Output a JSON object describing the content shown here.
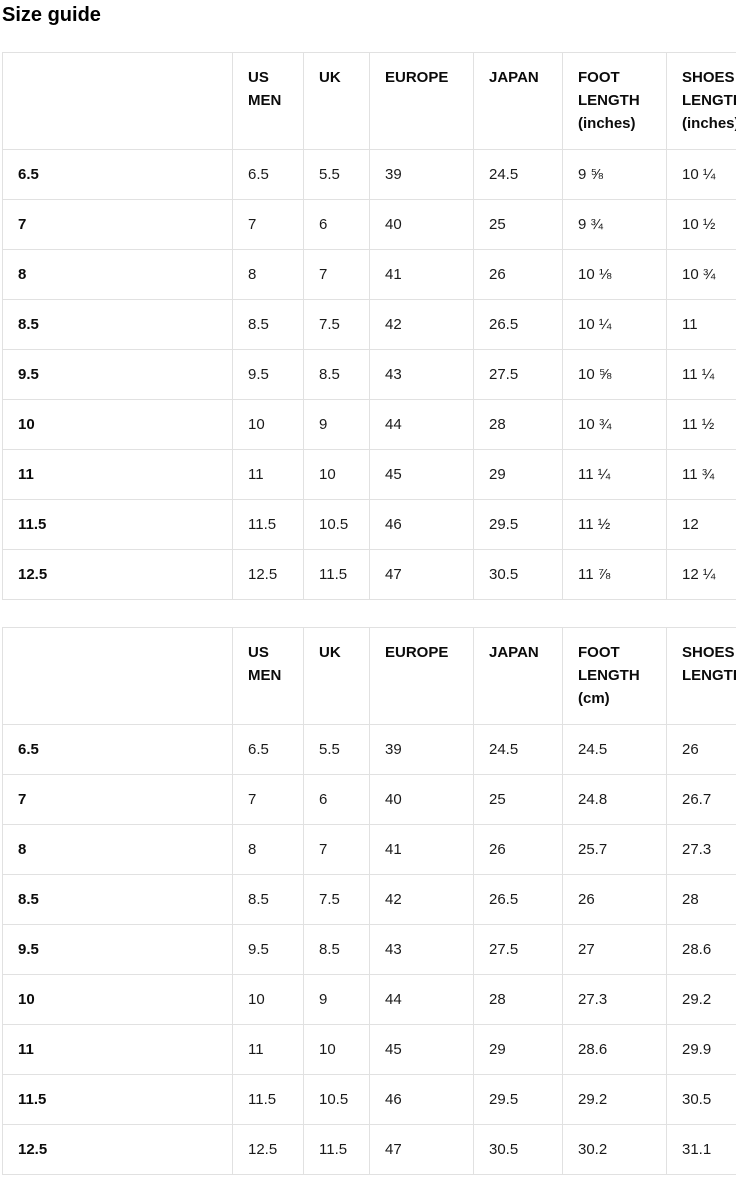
{
  "page": {
    "title": "Size guide"
  },
  "tables": [
    {
      "name": "men-shoe-sizes-inches",
      "headers": [
        "",
        "US MEN",
        "UK",
        "EUROPE",
        "JAPAN",
        "FOOT LENGTH (inches)",
        "SHOES LENGTH (inches)"
      ],
      "rows": [
        {
          "label": "6.5",
          "cells": [
            "6.5",
            "5.5",
            "39",
            "24.5",
            "9 ⅝",
            "10 ¼"
          ]
        },
        {
          "label": "7",
          "cells": [
            "7",
            "6",
            "40",
            "25",
            "9 ¾",
            "10 ½"
          ]
        },
        {
          "label": "8",
          "cells": [
            "8",
            "7",
            "41",
            "26",
            "10 ⅛",
            "10 ¾"
          ]
        },
        {
          "label": "8.5",
          "cells": [
            "8.5",
            "7.5",
            "42",
            "26.5",
            "10 ¼",
            "11"
          ]
        },
        {
          "label": "9.5",
          "cells": [
            "9.5",
            "8.5",
            "43",
            "27.5",
            "10 ⅝",
            "11 ¼"
          ]
        },
        {
          "label": "10",
          "cells": [
            "10",
            "9",
            "44",
            "28",
            "10 ¾",
            "11 ½"
          ]
        },
        {
          "label": "11",
          "cells": [
            "11",
            "10",
            "45",
            "29",
            "11 ¼",
            "11 ¾"
          ]
        },
        {
          "label": "11.5",
          "cells": [
            "11.5",
            "10.5",
            "46",
            "29.5",
            "11 ½",
            "12"
          ]
        },
        {
          "label": "12.5",
          "cells": [
            "12.5",
            "11.5",
            "47",
            "30.5",
            "11 ⅞",
            "12 ¼"
          ]
        }
      ]
    },
    {
      "name": "men-shoe-sizes-cm",
      "headers": [
        "",
        "US MEN",
        "UK",
        "EUROPE",
        "JAPAN",
        "FOOT LENGTH (cm)",
        "SHOES LENGTH (cm)"
      ],
      "rows": [
        {
          "label": "6.5",
          "cells": [
            "6.5",
            "5.5",
            "39",
            "24.5",
            "24.5",
            "26"
          ]
        },
        {
          "label": "7",
          "cells": [
            "7",
            "6",
            "40",
            "25",
            "24.8",
            "26.7"
          ]
        },
        {
          "label": "8",
          "cells": [
            "8",
            "7",
            "41",
            "26",
            "25.7",
            "27.3"
          ]
        },
        {
          "label": "8.5",
          "cells": [
            "8.5",
            "7.5",
            "42",
            "26.5",
            "26",
            "28"
          ]
        },
        {
          "label": "9.5",
          "cells": [
            "9.5",
            "8.5",
            "43",
            "27.5",
            "27",
            "28.6"
          ]
        },
        {
          "label": "10",
          "cells": [
            "10",
            "9",
            "44",
            "28",
            "27.3",
            "29.2"
          ]
        },
        {
          "label": "11",
          "cells": [
            "11",
            "10",
            "45",
            "29",
            "28.6",
            "29.9"
          ]
        },
        {
          "label": "11.5",
          "cells": [
            "11.5",
            "10.5",
            "46",
            "29.5",
            "29.2",
            "30.5"
          ]
        },
        {
          "label": "12.5",
          "cells": [
            "12.5",
            "11.5",
            "47",
            "30.5",
            "30.2",
            "31.1"
          ]
        }
      ]
    }
  ]
}
